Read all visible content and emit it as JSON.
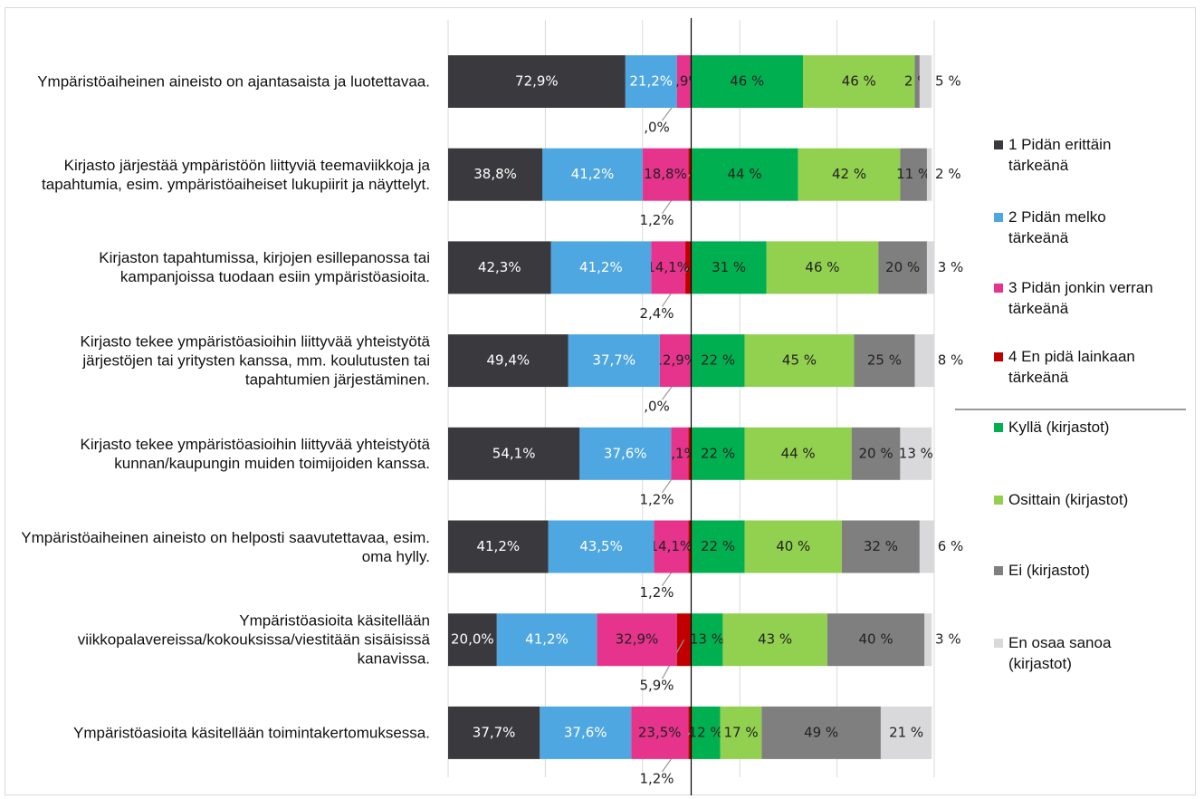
{
  "chart_data": {
    "type": "diverging-bar",
    "categories": [
      "Ympäristöaiheinen aineisto on ajantasaista ja luotettavaa.",
      "Kirjasto järjestää ympäristöön liittyviä teemaviikkoja ja tapahtumia, esim. ympäristöaiheiset lukupiirit ja näyttelyt.",
      "Kirjaston tapahtumissa, kirjojen esillepanossa tai kampanjoissa tuodaan esiin ympäristöasioita.",
      "Kirjasto tekee ympäristöasioihin liittyvää yhteistyötä järjestöjen tai yritysten kanssa, mm. koulutusten tai tapahtumien järjestäminen.",
      "Kirjasto tekee ympäristöasioihin liittyvää yhteistyötä kunnan/kaupungin muiden toimijoiden kanssa.",
      "Ympäristöaiheinen aineisto on helposti saavutettavaa, esim. oma hylly.",
      "Ympäristöasioita käsitellään viikkopalavereissa/kokouksissa/viestitään sisäisissä kanavissa.",
      "Ympäristöasioita käsitellään toimintakertomuksessa."
    ],
    "xlim": [
      -100,
      100
    ],
    "left_series": [
      {
        "name": "1 Pidän erittäin tärkeänä",
        "color": "#3a3a3e",
        "values": [
          72.9,
          38.8,
          42.3,
          49.4,
          54.1,
          41.2,
          20.0,
          37.7
        ],
        "value_labels": [
          "72,9%",
          "38,8%",
          "42,3%",
          "49,4%",
          "54,1%",
          "41,2%",
          "20,0%",
          "37,7%"
        ]
      },
      {
        "name": "2 Pidän melko tärkeänä",
        "color": "#4ea7e0",
        "values": [
          21.2,
          41.2,
          41.2,
          37.7,
          37.6,
          43.5,
          41.2,
          37.6
        ],
        "value_labels": [
          "21,2%",
          "41,2%",
          "41,2%",
          "37,7%",
          "37,6%",
          "43,5%",
          "41,2%",
          "37,6%"
        ]
      },
      {
        "name": "3 Pidän jonkin verran tärkeänä",
        "color": "#e6338c",
        "values": [
          5.9,
          18.8,
          14.1,
          12.9,
          7.1,
          14.1,
          32.9,
          23.5
        ],
        "value_labels": [
          "5,9%",
          "18,8%",
          "14,1%",
          "12,9%",
          "7,1%",
          "14,1%",
          "32,9%",
          "23,5%"
        ]
      },
      {
        "name": "4 En pidä lainkaan tärkeänä",
        "color": "#c00000",
        "values": [
          0,
          1.2,
          2.4,
          0,
          1.2,
          1.2,
          5.9,
          1.2
        ],
        "value_labels": [
          ",0%",
          "1,2%",
          "2,4%",
          ",0%",
          "1,2%",
          "1,2%",
          "5,9%",
          "1,2%"
        ]
      }
    ],
    "right_series": [
      {
        "name": "Kyllä (kirjastot)",
        "color": "#00b050",
        "values": [
          46,
          44,
          31,
          22,
          22,
          22,
          13,
          12
        ],
        "value_labels": [
          "46 %",
          "44 %",
          "31 %",
          "22 %",
          "22 %",
          "22 %",
          "13 %",
          "12 %"
        ]
      },
      {
        "name": "Osittain (kirjastot)",
        "color": "#92d050",
        "values": [
          46,
          42,
          46,
          45,
          44,
          40,
          43,
          17
        ],
        "value_labels": [
          "46 %",
          "42 %",
          "46 %",
          "45 %",
          "44 %",
          "40 %",
          "43 %",
          "17 %"
        ]
      },
      {
        "name": "Ei (kirjastot)",
        "color": "#7f7f7f",
        "values": [
          2,
          11,
          20,
          25,
          20,
          32,
          40,
          49
        ],
        "value_labels": [
          "2 %",
          "11 %",
          "20 %",
          "25 %",
          "20 %",
          "32 %",
          "40 %",
          "49 %"
        ]
      },
      {
        "name": "En osaa sanoa (kirjastot)",
        "color": "#d9d9db",
        "values": [
          5,
          2,
          3,
          8,
          13,
          6,
          3,
          21
        ],
        "value_labels": [
          "5 %",
          "2 %",
          "3 %",
          "8 %",
          "13 %",
          "6 %",
          "3 %",
          "21 %"
        ]
      }
    ]
  }
}
